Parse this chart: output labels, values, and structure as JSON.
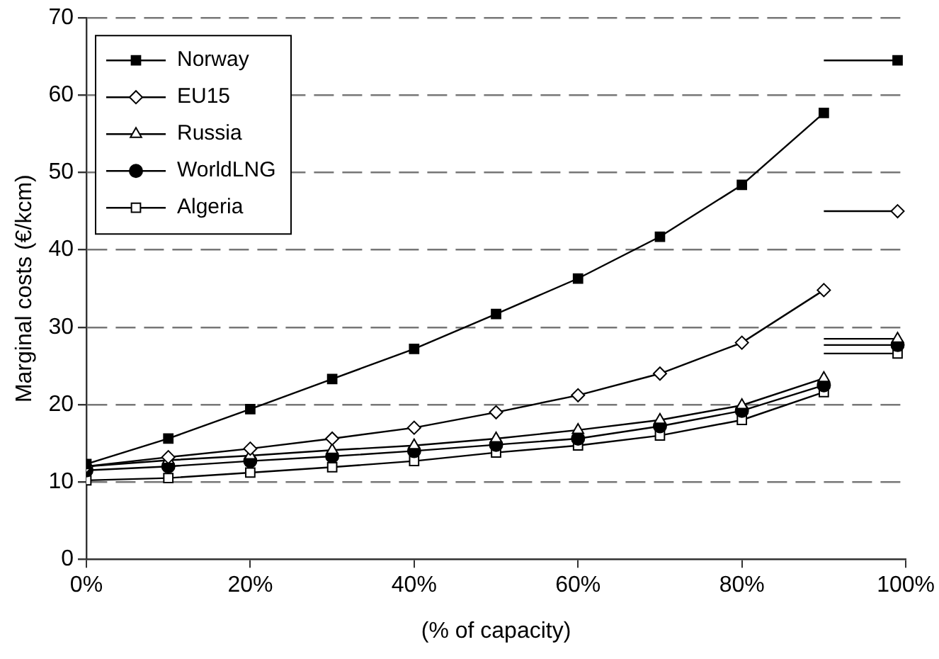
{
  "chart_data": {
    "type": "line",
    "xlabel": "(% of capacity)",
    "ylabel": "Marginal costs (€/kcm)",
    "x": [
      0,
      10,
      20,
      30,
      40,
      50,
      60,
      70,
      80,
      90,
      90,
      99
    ],
    "xlim": [
      0,
      100
    ],
    "xticks": [
      {
        "value": 0,
        "label": "0%"
      },
      {
        "value": 20,
        "label": "20%"
      },
      {
        "value": 40,
        "label": "40%"
      },
      {
        "value": 60,
        "label": "60%"
      },
      {
        "value": 80,
        "label": "80%"
      },
      {
        "value": 100,
        "label": "100%"
      }
    ],
    "ylim": [
      0,
      70
    ],
    "yticks": [
      0,
      10,
      20,
      30,
      40,
      50,
      60,
      70
    ],
    "grid": "y",
    "legend": "top left",
    "line_style": "solid",
    "series": [
      {
        "name": "Norway",
        "color": "#000000",
        "marker": "square",
        "colors": [
          "#000000",
          "#000000",
          "#000000",
          "#000000",
          "#000000",
          "#000000",
          "#000000",
          "#000000",
          "#000000",
          "#000000",
          "#000000",
          "#000000"
        ],
        "values": [
          12.3,
          15.6,
          19.4,
          23.3,
          27.2,
          31.7,
          36.3,
          41.7,
          48.4,
          57.7,
          64.5,
          64.5
        ]
      },
      {
        "name": "EU15",
        "color": "#000000",
        "marker": "diamond",
        "values": [
          12.0,
          13.2,
          14.3,
          15.6,
          17.0,
          19.0,
          21.2,
          24.0,
          28.0,
          34.8,
          45.0,
          45.0
        ]
      },
      {
        "name": "Russia",
        "color": "#000000",
        "marker": "triangle",
        "values": [
          12.0,
          12.8,
          13.4,
          14.1,
          14.7,
          15.6,
          16.7,
          18.0,
          19.9,
          23.4,
          28.5,
          28.5
        ]
      },
      {
        "name": "WorldLNG",
        "color": "#000000",
        "marker": "circle",
        "colors": [
          "#000000",
          "#000000",
          "#000000",
          "#000000",
          "#000000",
          "#000000",
          "#000000",
          "#000000",
          "#000000",
          "#000000",
          "#000000",
          "#000000"
        ],
        "values": [
          11.5,
          12.0,
          12.7,
          13.3,
          14.0,
          14.8,
          15.6,
          17.2,
          19.2,
          22.5,
          27.7,
          27.7
        ]
      },
      {
        "name": "Algeria",
        "color": "#000000",
        "marker": "square",
        "values": [
          10.2,
          10.5,
          11.2,
          11.9,
          12.7,
          13.8,
          14.7,
          16.0,
          18.0,
          21.6,
          26.6,
          26.6
        ]
      }
    ]
  }
}
